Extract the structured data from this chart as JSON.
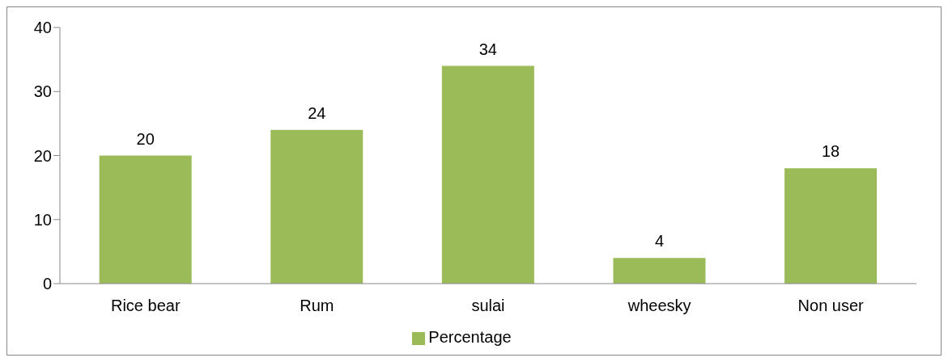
{
  "chart_data": {
    "type": "bar",
    "categories": [
      "Rice bear",
      "Rum",
      "sulai",
      "wheesky",
      "Non user"
    ],
    "series": [
      {
        "name": "Percentage",
        "color": "#9bbb59",
        "values": [
          20,
          24,
          34,
          4,
          18
        ]
      }
    ],
    "ylim": [
      0,
      40
    ],
    "yticks": [
      0,
      10,
      20,
      30,
      40
    ],
    "grid": false,
    "legend": "bottom",
    "data_labels": true
  }
}
